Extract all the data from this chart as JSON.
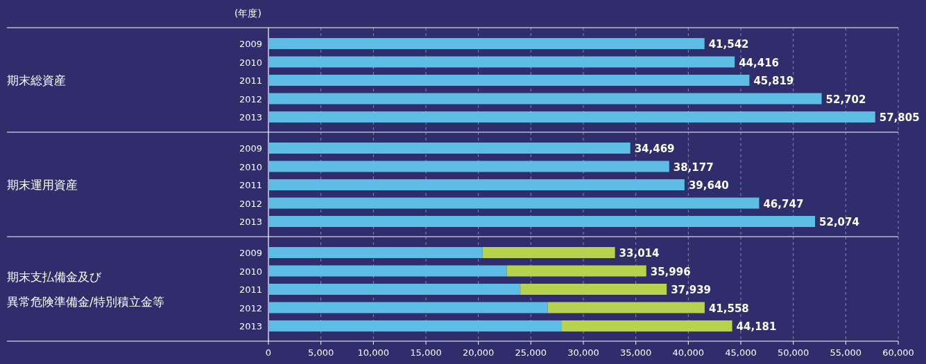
{
  "chart_data": [
    {
      "type": "bar",
      "orientation": "horizontal",
      "ylabel": "期末総資産",
      "annotations": [
        "(年度)"
      ],
      "categories": [
        "2009",
        "2010",
        "2011",
        "2012",
        "2013"
      ],
      "color": "#5dbde4",
      "values": [
        41542,
        44416,
        45819,
        52702,
        57805
      ],
      "value_labels": [
        "41,542",
        "44,416",
        "45,819",
        "52,702",
        "57,805"
      ],
      "xlim": [
        0,
        60000
      ],
      "xticks": [
        0,
        5000,
        10000,
        15000,
        20000,
        25000,
        30000,
        35000,
        40000,
        45000,
        50000,
        55000,
        60000
      ],
      "grid": "x",
      "tick_labels": "y"
    },
    {
      "type": "bar",
      "orientation": "horizontal",
      "ylabel": "期末運用資産",
      "categories": [
        "2009",
        "2010",
        "2011",
        "2012",
        "2013"
      ],
      "color": "#5dbde4",
      "values": [
        34469,
        38177,
        39640,
        46747,
        52074
      ],
      "value_labels": [
        "34,469",
        "38,177",
        "39,640",
        "46,747",
        "52,074"
      ],
      "xlim": [
        0,
        60000
      ],
      "xticks": [
        0,
        5000,
        10000,
        15000,
        20000,
        25000,
        30000,
        35000,
        40000,
        45000,
        50000,
        55000,
        60000
      ],
      "grid": "x",
      "tick_labels": "y"
    },
    {
      "type": "bar",
      "orientation": "horizontal",
      "stacked": true,
      "ylabel": "期末支払備金及び",
      "annotations": [
        "異常危険準備金/特別積立金等"
      ],
      "categories": [
        "2009",
        "2010",
        "2011",
        "2012",
        "2013"
      ],
      "series": [
        {
          "color": "#5dbde4",
          "values": [
            20400,
            22700,
            24000,
            26600,
            27900
          ]
        },
        {
          "color": "#b6d350",
          "values": [
            12614,
            13296,
            13939,
            14958,
            16281
          ]
        }
      ],
      "totals": [
        "33,014",
        "35,996",
        "37,939",
        "41,558",
        "44,181"
      ],
      "xlim": [
        0,
        60000
      ],
      "xticks": [
        0,
        {
          "value": 5000,
          "label": "5,000"
        },
        {
          "value": 10000,
          "label": "10,000"
        },
        {
          "value": 15000,
          "label": "15,000"
        },
        {
          "value": 20000,
          "label": "20,000"
        },
        {
          "value": 25000,
          "label": "25,000"
        },
        {
          "value": 30000,
          "label": "30,000"
        },
        {
          "value": 35000,
          "label": "35,000"
        },
        {
          "value": 40000,
          "label": "40,000"
        },
        {
          "value": 45000,
          "label": "45,000"
        },
        {
          "value": 50000,
          "label": "50,000"
        },
        {
          "value": 55000,
          "label": "55,000"
        },
        {
          "value": 60000,
          "label": "60,000"
        }
      ],
      "grid": "x"
    }
  ]
}
